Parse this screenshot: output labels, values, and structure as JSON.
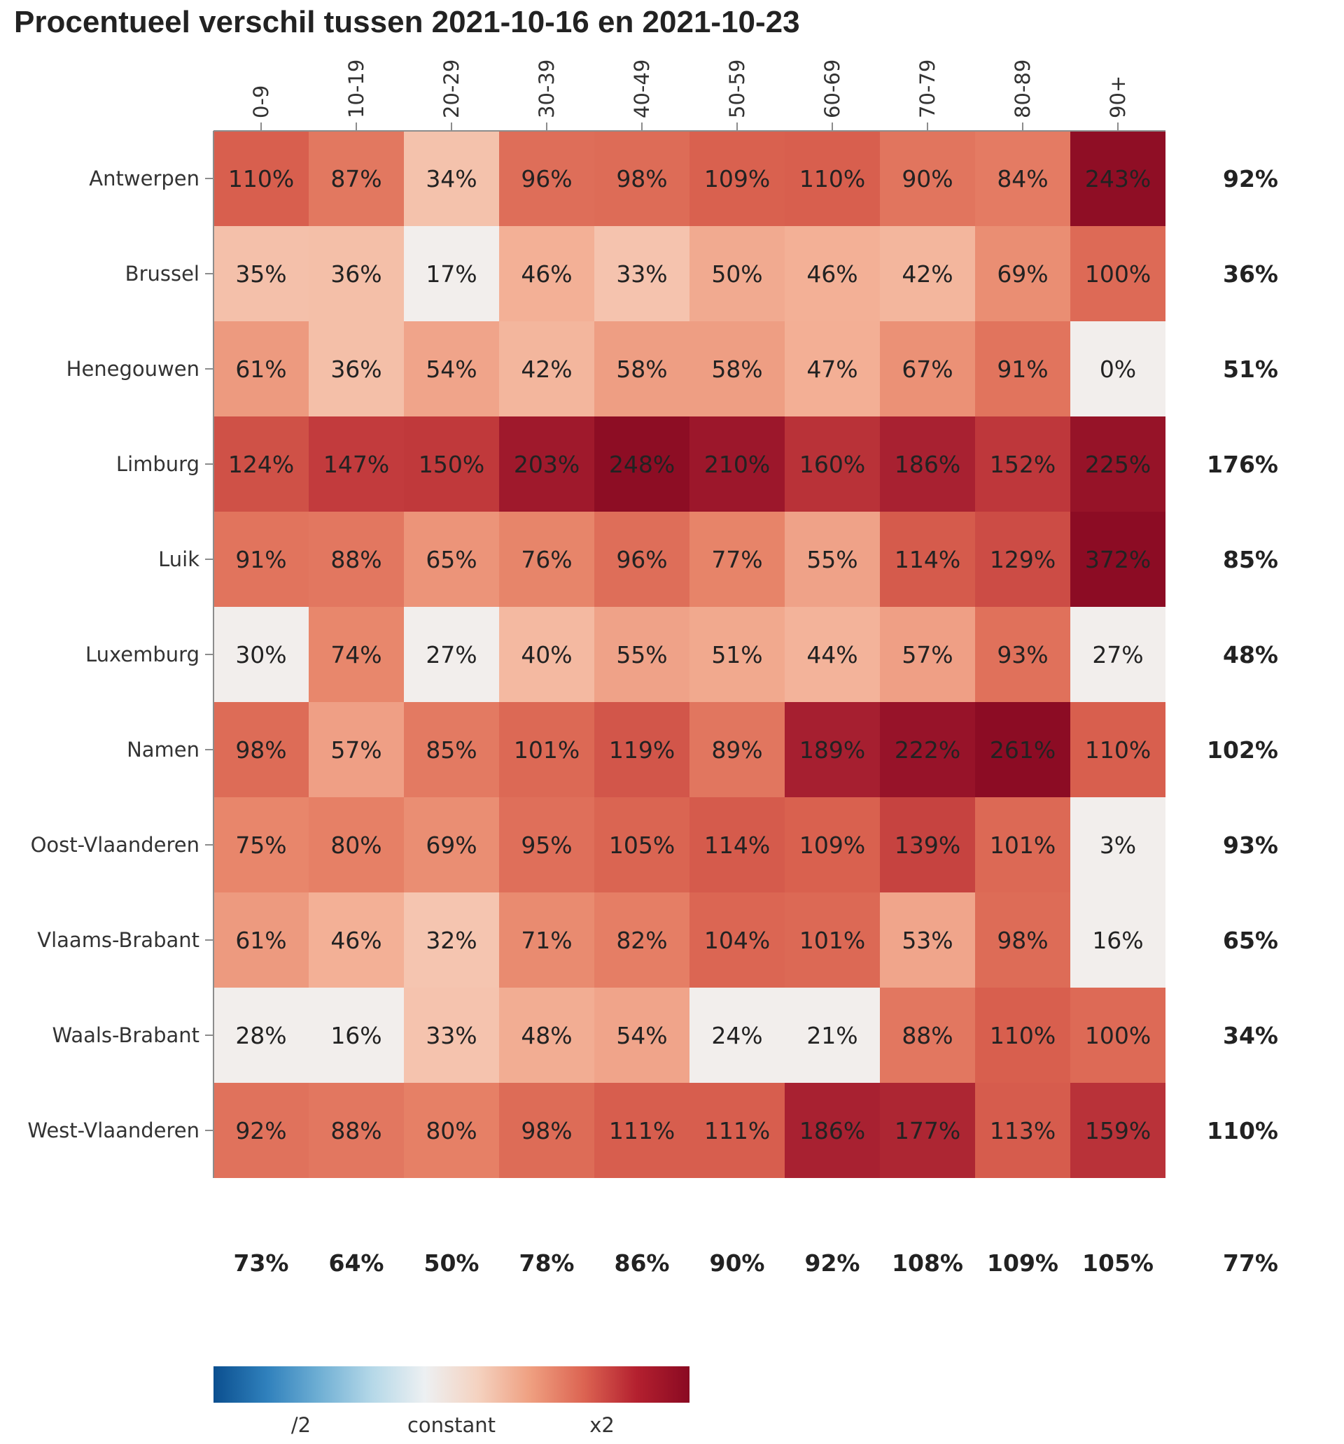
{
  "chart_data": {
    "type": "heatmap",
    "title": "Procentueel verschil tussen 2021-10-16 en 2021-10-23",
    "x_categories": [
      "0-9",
      "10-19",
      "20-29",
      "30-39",
      "40-49",
      "50-59",
      "60-69",
      "70-79",
      "80-89",
      "90+"
    ],
    "y_categories": [
      "Antwerpen",
      "Brussel",
      "Henegouwen",
      "Limburg",
      "Luik",
      "Luxemburg",
      "Namen",
      "Oost-Vlaanderen",
      "Vlaams-Brabant",
      "Waals-Brabant",
      "West-Vlaanderen"
    ],
    "values": [
      [
        110,
        87,
        34,
        96,
        98,
        109,
        110,
        90,
        84,
        243
      ],
      [
        35,
        36,
        17,
        46,
        33,
        50,
        46,
        42,
        69,
        100
      ],
      [
        61,
        36,
        54,
        42,
        58,
        58,
        47,
        67,
        91,
        0
      ],
      [
        124,
        147,
        150,
        203,
        248,
        210,
        160,
        186,
        152,
        225
      ],
      [
        91,
        88,
        65,
        76,
        96,
        77,
        55,
        114,
        129,
        372
      ],
      [
        30,
        74,
        27,
        40,
        55,
        51,
        44,
        57,
        93,
        27
      ],
      [
        98,
        57,
        85,
        101,
        119,
        89,
        189,
        222,
        261,
        110
      ],
      [
        75,
        80,
        69,
        95,
        105,
        114,
        109,
        139,
        101,
        3
      ],
      [
        61,
        46,
        32,
        71,
        82,
        104,
        101,
        53,
        98,
        16
      ],
      [
        28,
        16,
        33,
        48,
        54,
        24,
        21,
        88,
        110,
        100
      ],
      [
        92,
        88,
        80,
        98,
        111,
        111,
        186,
        177,
        113,
        159
      ]
    ],
    "value_suffix": "%",
    "row_totals": [
      92,
      36,
      51,
      176,
      85,
      48,
      102,
      93,
      65,
      34,
      110
    ],
    "column_totals": [
      73,
      64,
      50,
      78,
      86,
      90,
      92,
      108,
      109,
      105
    ],
    "grand_total": 77,
    "legend": {
      "labels": [
        "/2",
        "constant",
        "x2"
      ],
      "colors": [
        "#0b4f8f",
        "#2f80bc",
        "#6fafd4",
        "#b5d8e8",
        "#edf0f2",
        "#f4d2c0",
        "#ef9f80",
        "#dc6452",
        "#b4202f",
        "#8a0a22"
      ]
    },
    "color_scale": {
      "colors": [
        "#f2eeec",
        "#f6d5c4",
        "#f3b096",
        "#e8866b",
        "#d9614f",
        "#c13a3c",
        "#a21b2e",
        "#8c0c24"
      ],
      "domain_log2": [
        0,
        0.55,
        1.0
      ]
    },
    "grid": false
  }
}
